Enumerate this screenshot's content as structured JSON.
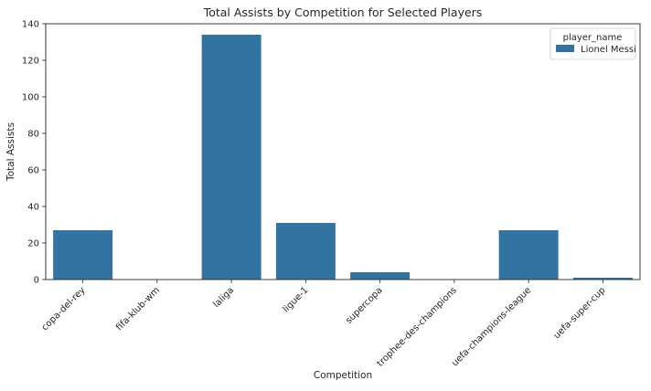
{
  "chart_data": {
    "type": "bar",
    "title": "Total Assists by Competition for Selected Players",
    "xlabel": "Competition",
    "ylabel": "Total Assists",
    "categories": [
      "copa-del-rey",
      "fifa-klub-wm",
      "laliga",
      "ligue-1",
      "supercopa",
      "trophee-des-champions",
      "uefa-champions-league",
      "uefa-super-cup"
    ],
    "series": [
      {
        "name": "Lionel Messi",
        "values": [
          27,
          0,
          134,
          31,
          4,
          0,
          27,
          1
        ],
        "color": "#3274a1"
      }
    ],
    "ylim": [
      0,
      140
    ],
    "yticks": [
      0,
      20,
      40,
      60,
      80,
      100,
      120,
      140
    ],
    "legend": {
      "title": "player_name",
      "placement": "top-right"
    },
    "grid": false
  }
}
